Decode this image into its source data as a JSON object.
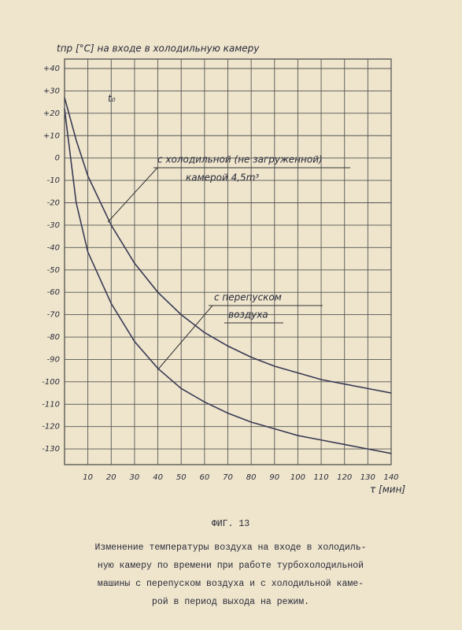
{
  "chart_data": {
    "type": "line",
    "ylabel": "tпр [°C]  на входе в холодильную камеру",
    "y_marker": "t₀",
    "xlabel": "τ [мин]",
    "x": [
      0,
      5,
      10,
      20,
      30,
      40,
      50,
      60,
      70,
      80,
      90,
      100,
      110,
      120,
      130,
      140
    ],
    "series": [
      {
        "color": "#3a3a55",
        "values": [
          27,
          8,
          -8,
          -30,
          -47,
          -60,
          -70,
          -78,
          -84,
          -89,
          -93,
          -96,
          -99,
          -101,
          -103,
          -105
        ]
      },
      {
        "color": "#3a3a55",
        "values": [
          22,
          -20,
          -42,
          -65,
          -82,
          -94,
          -103,
          -109,
          -114,
          -118,
          -121,
          -124,
          -126,
          -128,
          -130,
          -132
        ]
      }
    ],
    "xlim": [
      0,
      140
    ],
    "ylim": [
      -137,
      40
    ],
    "xticks": [
      10,
      20,
      30,
      40,
      50,
      60,
      70,
      80,
      90,
      100,
      110,
      120,
      130,
      140
    ],
    "yticks": [
      {
        "value": 40,
        "label": "+40"
      },
      {
        "value": 30,
        "label": "+30"
      },
      {
        "value": 20,
        "label": "+20"
      },
      {
        "value": 10,
        "label": "+10"
      },
      0,
      -10,
      -20,
      -30,
      -40,
      -50,
      -60,
      -70,
      -80,
      -90,
      -100,
      -110,
      -120,
      -130
    ],
    "grid": true,
    "annotations": [
      "с холодильной (не загруженной)",
      "камерой  4,5m³",
      "с перепуском",
      "воздуха"
    ],
    "figure_label": "ФИГ. 13",
    "caption": [
      "Изменение температуры воздуха на входе в холодиль-",
      "ную камеру по времени при работе турбохолодильной",
      "машины с перепуском воздуха и с холодильной каме-",
      "рой в период выхода на режим."
    ]
  }
}
